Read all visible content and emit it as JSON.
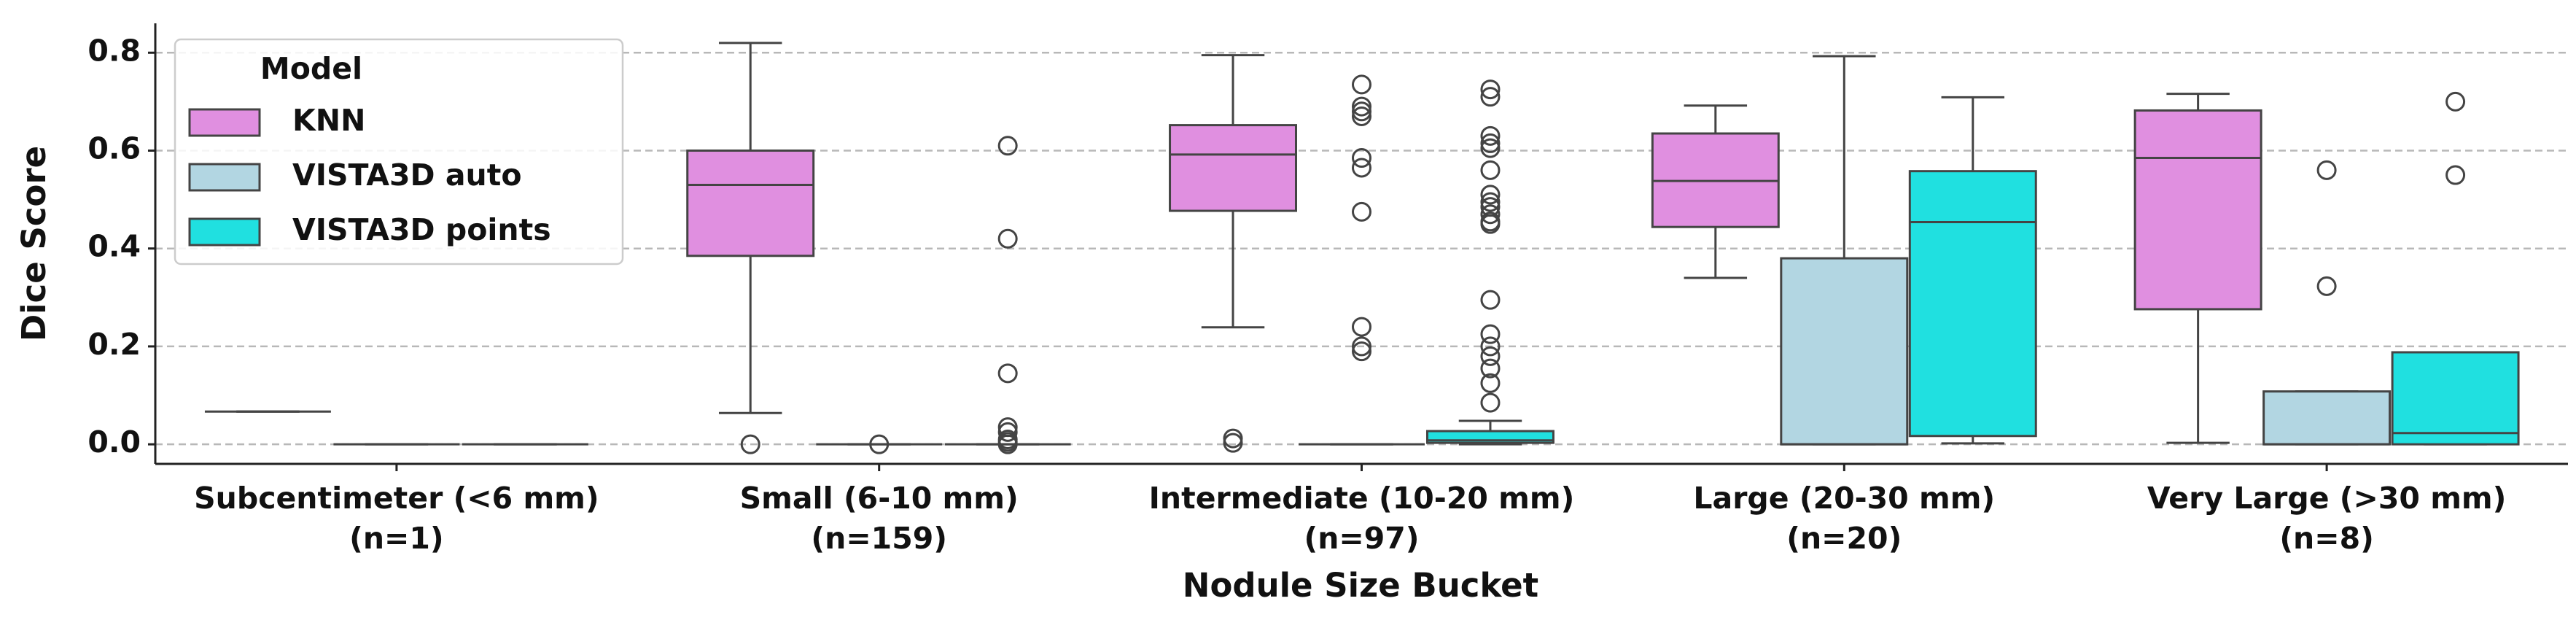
{
  "chart_data": {
    "type": "box",
    "x_label": "Nodule Size Bucket",
    "y_label": "Dice Score",
    "categories": [
      [
        "Subcentimeter (<6 mm)",
        "(n=1)"
      ],
      [
        "Small (6-10 mm)",
        "(n=159)"
      ],
      [
        "Intermediate (10-20 mm)",
        "(n=97)"
      ],
      [
        "Large (20-30 mm)",
        "(n=20)"
      ],
      [
        "Very Large (>30 mm)",
        "(n=8)"
      ]
    ],
    "ylim": [
      -0.04,
      0.86
    ],
    "yticks": [
      {
        "value": 0,
        "label": "0.0"
      },
      0.2,
      0.4,
      0.6,
      0.8
    ],
    "grid": "y",
    "legend": "upper left",
    "legend_title": "Model",
    "series": [
      {
        "name": "KNN",
        "color": "#e08fe0",
        "boxes": [
          {
            "whislo": 0.067,
            "q1": 0.067,
            "med": 0.067,
            "q3": 0.067,
            "whishi": 0.067,
            "fliers": []
          },
          {
            "whislo": 0.064,
            "q1": 0.385,
            "med": 0.53,
            "q3": 0.6,
            "whishi": 0.82,
            "fliers": [
              0.0
            ]
          },
          {
            "whislo": 0.239,
            "q1": 0.477,
            "med": 0.592,
            "q3": 0.652,
            "whishi": 0.795,
            "fliers": [
              0.012,
              0.003
            ]
          },
          {
            "whislo": 0.34,
            "q1": 0.444,
            "med": 0.538,
            "q3": 0.635,
            "whishi": 0.692,
            "fliers": []
          },
          {
            "whislo": 0.003,
            "q1": 0.276,
            "med": 0.585,
            "q3": 0.682,
            "whishi": 0.716,
            "fliers": []
          }
        ]
      },
      {
        "name": "VISTA3D auto",
        "color": "#b2d6e2",
        "boxes": [
          {
            "whislo": 0,
            "q1": 0,
            "med": 0,
            "q3": 0,
            "whishi": 0,
            "fliers": []
          },
          {
            "whislo": 0,
            "q1": 0,
            "med": 0,
            "q3": 0,
            "whishi": 0,
            "fliers": [
              0.0
            ]
          },
          {
            "whislo": 0,
            "q1": 0,
            "med": 0,
            "q3": 0,
            "whishi": 0,
            "fliers": [
              0.735,
              0.69,
              0.68,
              0.67,
              0.585,
              0.565,
              0.475,
              0.24,
              0.2,
              0.19
            ]
          },
          {
            "whislo": 0,
            "q1": 0,
            "med": 0,
            "q3": 0.38,
            "whishi": 0.793,
            "fliers": []
          },
          {
            "whislo": 0,
            "q1": 0,
            "med": 0,
            "q3": 0.108,
            "whishi": 0.108,
            "fliers": [
              0.56,
              0.323
            ]
          }
        ]
      },
      {
        "name": "VISTA3D points",
        "color": "#20e0e0",
        "boxes": [
          {
            "whislo": 0,
            "q1": 0,
            "med": 0,
            "q3": 0,
            "whishi": 0,
            "fliers": []
          },
          {
            "whislo": 0,
            "q1": 0,
            "med": 0,
            "q3": 0,
            "whishi": 0,
            "fliers": [
              0.61,
              0.42,
              0.145,
              0.035,
              0.025,
              0.01,
              0.005,
              0.0
            ]
          },
          {
            "whislo": 0,
            "q1": 0.003,
            "med": 0.008,
            "q3": 0.027,
            "whishi": 0.048,
            "fliers": [
              0.725,
              0.71,
              0.63,
              0.615,
              0.605,
              0.56,
              0.51,
              0.495,
              0.485,
              0.47,
              0.455,
              0.45,
              0.295,
              0.225,
              0.2,
              0.18,
              0.155,
              0.125,
              0.085
            ]
          },
          {
            "whislo": 0.002,
            "q1": 0.017,
            "med": 0.454,
            "q3": 0.558,
            "whishi": 0.709,
            "fliers": []
          },
          {
            "whislo": 0,
            "q1": 0,
            "med": 0.023,
            "q3": 0.188,
            "whishi": 0.188,
            "fliers": [
              0.7,
              0.55
            ]
          }
        ]
      }
    ]
  }
}
